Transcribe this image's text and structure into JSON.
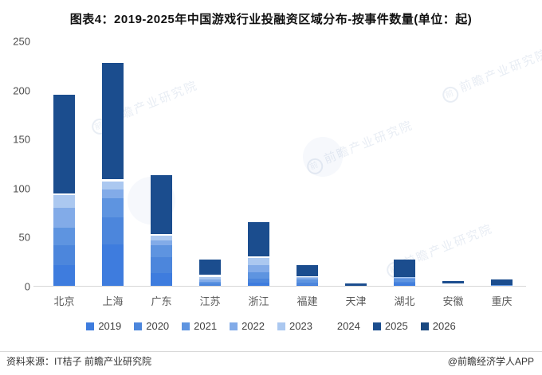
{
  "title": "图表4：2019-2025年中国游戏行业投融资区域分布-按事件数量(单位：起)",
  "footer": {
    "source": "资料来源：IT桔子 前瞻产业研究院",
    "brand": "@前瞻经济学人APP"
  },
  "watermark": {
    "text": "前瞻产业研究院",
    "logo_glyph": "前"
  },
  "colors": {
    "axis_text": "#4d4d4d",
    "baseline": "#d6d6d6",
    "title_text": "#111111"
  },
  "chart_data": {
    "type": "bar",
    "stacked": true,
    "title": "图表4：2019-2025年中国游戏行业投融资区域分布-按事件数量(单位：起)",
    "unit": "起",
    "xlabel": "",
    "ylabel": "",
    "ylim": [
      0,
      250
    ],
    "yticks": [
      0,
      50,
      100,
      150,
      200,
      250
    ],
    "gridlines": false,
    "legend_position": "bottom",
    "categories": [
      "北京",
      "上海",
      "广东",
      "江苏",
      "浙江",
      "福建",
      "天津",
      "湖北",
      "安徽",
      "重庆"
    ],
    "series": [
      {
        "name": "2019",
        "color": "#3e7cde",
        "values": [
          22,
          43,
          14,
          1,
          4,
          2,
          0,
          3,
          0,
          0
        ]
      },
      {
        "name": "2020",
        "color": "#4c86dc",
        "values": [
          20,
          28,
          16,
          2,
          4,
          2,
          0,
          2,
          0,
          0
        ]
      },
      {
        "name": "2021",
        "color": "#5e94e0",
        "values": [
          18,
          19,
          12,
          2,
          7,
          3,
          0,
          3,
          0,
          2
        ]
      },
      {
        "name": "2022",
        "color": "#82abe8",
        "values": [
          20,
          9,
          5,
          2,
          7,
          2,
          0,
          1,
          0,
          0
        ]
      },
      {
        "name": "2023",
        "color": "#abc8f0",
        "values": [
          13,
          8,
          5,
          3,
          7,
          1,
          0,
          1,
          0,
          0
        ]
      },
      {
        "name": "2024",
        "color": "#ffffff",
        "values": [
          2,
          3,
          2,
          2,
          2,
          1,
          1,
          0,
          3,
          0
        ]
      },
      {
        "name": "2025",
        "color": "#1b4d8e",
        "values": [
          101,
          118,
          60,
          16,
          35,
          11,
          2,
          18,
          3,
          5
        ]
      },
      {
        "name": "2026",
        "color": "#194880",
        "values": [
          0,
          0,
          0,
          0,
          0,
          0,
          0,
          0,
          0,
          0
        ]
      }
    ],
    "totals": [
      196,
      228,
      114,
      28,
      66,
      22,
      3,
      28,
      6,
      7
    ]
  }
}
